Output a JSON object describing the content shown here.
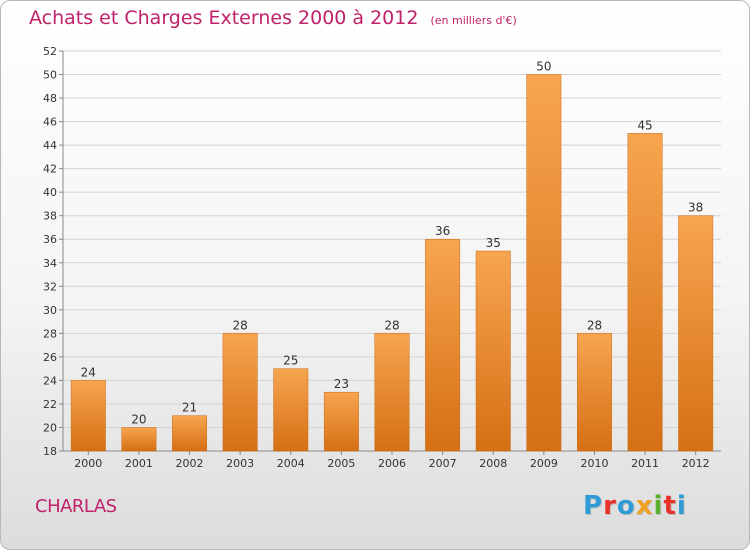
{
  "header": {
    "title": "Achats et Charges Externes 2000 à 2012",
    "unit": "(en milliers d'€)"
  },
  "footer": {
    "commune": "CHARLAS",
    "logo": [
      "P",
      "r",
      "o",
      "x",
      "i",
      "t",
      "i"
    ],
    "logo_colors": [
      "#2f9bd6",
      "#e8332a",
      "#2f9bd6",
      "#f0a020",
      "#5cb030",
      "#e8332a",
      "#2f9bd6"
    ]
  },
  "chart_data": {
    "type": "bar",
    "categories": [
      "2000",
      "2001",
      "2002",
      "2003",
      "2004",
      "2005",
      "2006",
      "2007",
      "2008",
      "2009",
      "2010",
      "2011",
      "2012"
    ],
    "values": [
      24,
      20,
      21,
      28,
      25,
      23,
      28,
      36,
      35,
      50,
      28,
      45,
      38
    ],
    "data_labels": [
      "24",
      "20",
      "21",
      "28",
      "25",
      "23",
      "28",
      "36",
      "35",
      "50",
      "28",
      "45",
      "38"
    ],
    "ylim": [
      18,
      52
    ],
    "yticks": [
      "18",
      "20",
      "22",
      "24",
      "26",
      "28",
      "30",
      "32",
      "34",
      "36",
      "38",
      "40",
      "42",
      "44",
      "46",
      "48",
      "50",
      "52"
    ],
    "grid": true,
    "bar_color_top": "#f7a550",
    "bar_color_bottom": "#d56f14"
  }
}
